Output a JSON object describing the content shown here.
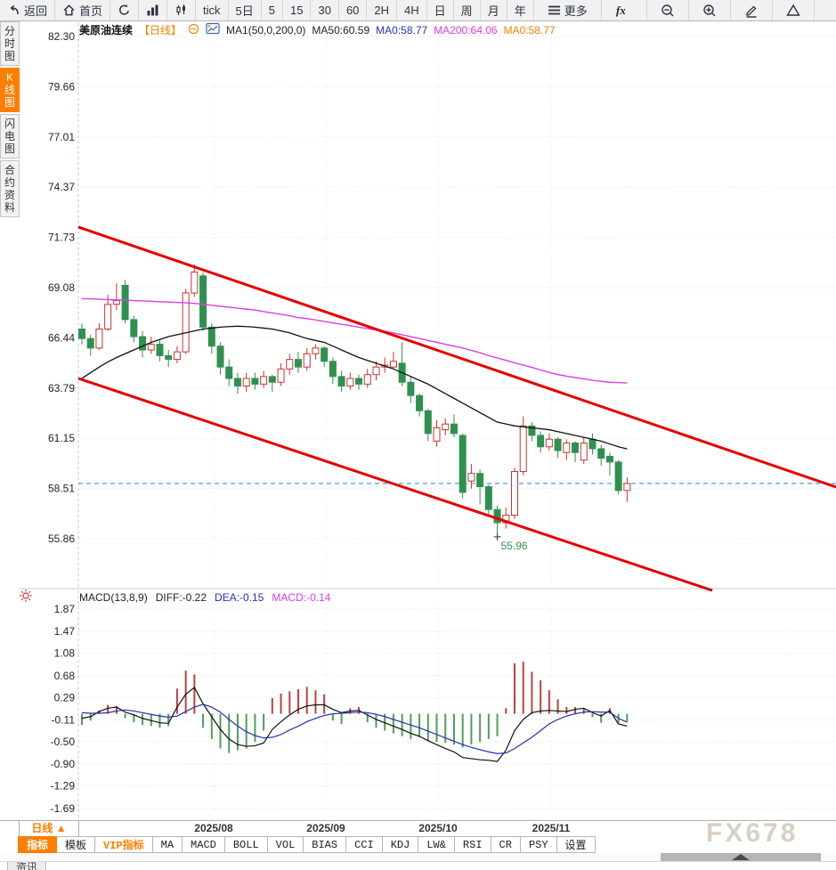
{
  "toolbar": {
    "items": [
      {
        "name": "toolbar-back-button",
        "icon": "back-icon",
        "label": "返回"
      },
      {
        "name": "toolbar-home-button",
        "icon": "home-icon",
        "label": "首页"
      },
      {
        "name": "toolbar-refresh-button",
        "icon": "refresh-icon",
        "label": ""
      },
      {
        "name": "toolbar-volume-chart-button",
        "icon": "volume-bars-icon",
        "label": ""
      },
      {
        "name": "toolbar-kline-chart-button",
        "icon": "kline-icon",
        "label": ""
      },
      {
        "name": "toolbar-interval-tick",
        "label": "tick"
      },
      {
        "name": "toolbar-interval-5d",
        "label": "5日"
      },
      {
        "name": "toolbar-interval-5m",
        "label": "5"
      },
      {
        "name": "toolbar-interval-15m",
        "label": "15"
      },
      {
        "name": "toolbar-interval-30m",
        "label": "30"
      },
      {
        "name": "toolbar-interval-60m",
        "label": "60"
      },
      {
        "name": "toolbar-interval-2h",
        "label": "2H"
      },
      {
        "name": "toolbar-interval-4h",
        "label": "4H"
      },
      {
        "name": "toolbar-interval-daily",
        "label": "日"
      },
      {
        "name": "toolbar-interval-weekly",
        "label": "周"
      },
      {
        "name": "toolbar-interval-monthly",
        "label": "月"
      },
      {
        "name": "toolbar-interval-yearly",
        "label": "年"
      },
      {
        "name": "toolbar-more-button",
        "icon": "menu-icon",
        "label": "更多",
        "wide": true
      },
      {
        "name": "toolbar-formula-button",
        "icon": "fx-icon",
        "label": "",
        "wide": true
      },
      {
        "name": "toolbar-zoom-out-button",
        "icon": "zoom-out-icon",
        "label": "",
        "wide": true
      },
      {
        "name": "toolbar-zoom-in-button",
        "icon": "zoom-in-icon",
        "label": "",
        "wide": true
      },
      {
        "name": "toolbar-draw-button",
        "icon": "pencil-icon",
        "label": "",
        "wide": true
      },
      {
        "name": "toolbar-shapes-button",
        "icon": "triangle-icon",
        "label": "",
        "wide": true
      }
    ]
  },
  "sidebar": {
    "tabs": [
      {
        "name": "sidebar-tab-time-chart",
        "label": "分时图",
        "active": false
      },
      {
        "name": "sidebar-tab-kline",
        "label": "K线图",
        "active": true
      },
      {
        "name": "sidebar-tab-lightning",
        "label": "闪电图",
        "active": false
      },
      {
        "name": "sidebar-tab-contract-info",
        "label": "合约资料",
        "active": false
      }
    ]
  },
  "legend": {
    "symbol": "美原油连续",
    "period_tag": "【日线】",
    "ma_settings": "MA1(50,0,200,0)",
    "ma50": "MA50:60.59",
    "ma0_blue": "MA0:58.77",
    "ma200": "MA200:64.06",
    "ma0_orange": "MA0:58.77"
  },
  "macd_legend": {
    "title": "MACD(13,8,9)",
    "diff": "DIFF:-0.22",
    "dea": "DEA:-0.15",
    "macd": "MACD:-0.14"
  },
  "bottom": {
    "period_label": "日线 ▲",
    "tabs": [
      {
        "name": "bottom-tab-indicator",
        "label": "指标",
        "sel": true
      },
      {
        "name": "bottom-tab-template",
        "label": "模板"
      },
      {
        "name": "bottom-tab-vip-indicator",
        "label": "VIP指标",
        "vip": true
      },
      {
        "name": "bottom-tab-ma",
        "label": "MA"
      },
      {
        "name": "bottom-tab-macd",
        "label": "MACD"
      },
      {
        "name": "bottom-tab-boll",
        "label": "BOLL"
      },
      {
        "name": "bottom-tab-vol",
        "label": "VOL"
      },
      {
        "name": "bottom-tab-bias",
        "label": "BIAS"
      },
      {
        "name": "bottom-tab-cci",
        "label": "CCI"
      },
      {
        "name": "bottom-tab-kdj",
        "label": "KDJ"
      },
      {
        "name": "bottom-tab-lw",
        "label": "LW&"
      },
      {
        "name": "bottom-tab-rsi",
        "label": "RSI"
      },
      {
        "name": "bottom-tab-cr",
        "label": "CR"
      },
      {
        "name": "bottom-tab-psy",
        "label": "PSY"
      },
      {
        "name": "bottom-tab-settings",
        "label": "设置"
      }
    ],
    "news_tab": "资讯"
  },
  "watermark": "FX678",
  "colors": {
    "accent_orange": "#ff7e00",
    "up_red": "#cc3232",
    "down_green": "#2f9150",
    "trend_red": "#e60000",
    "ma50_black": "#111111",
    "ma200_magenta": "#e03ce0",
    "dea_blue": "#2233aa",
    "dashed_blue": "#3e8fe8",
    "label_blue": "#2030c0",
    "low_green": "#2f9150"
  },
  "chart_data": [
    {
      "type": "candlestick",
      "title": "美原油连续 日线",
      "ylim": [
        54.5,
        83.0
      ],
      "y_ticks": [
        82.3,
        79.66,
        77.01,
        74.37,
        71.73,
        69.08,
        66.44,
        63.79,
        61.15,
        58.51,
        55.86
      ],
      "x_labels": [
        {
          "label": "2025/08",
          "x": 240
        },
        {
          "label": "2025/09",
          "x": 366
        },
        {
          "label": "2025/10",
          "x": 492
        },
        {
          "label": "2025/11",
          "x": 619
        }
      ],
      "grid": true,
      "last_close_line": 58.77,
      "low_annotation": {
        "index": 48,
        "price": 55.96,
        "label": "55.96"
      },
      "trend_channel": {
        "upper": [
          {
            "x": 88,
            "price": 72.27
          },
          {
            "x": 939,
            "price": 58.58
          }
        ],
        "lower": [
          {
            "x": 88,
            "price": 64.3
          },
          {
            "x": 800,
            "price": 53.14
          }
        ]
      },
      "candles": [
        [
          66.9,
          67.2,
          66.1,
          66.4
        ],
        [
          66.4,
          66.6,
          65.5,
          65.9
        ],
        [
          65.9,
          67.2,
          65.8,
          66.9
        ],
        [
          66.9,
          68.7,
          66.8,
          68.2
        ],
        [
          68.2,
          69.3,
          67.9,
          68.4
        ],
        [
          69.2,
          69.5,
          67.2,
          67.4
        ],
        [
          67.4,
          67.6,
          66.2,
          66.5
        ],
        [
          66.5,
          66.8,
          65.4,
          65.8
        ],
        [
          65.8,
          66.5,
          65.6,
          66.1
        ],
        [
          66.1,
          66.3,
          65.2,
          65.5
        ],
        [
          65.5,
          65.8,
          64.9,
          65.3
        ],
        [
          65.3,
          66.0,
          65.1,
          65.7
        ],
        [
          65.7,
          69.0,
          65.6,
          68.8
        ],
        [
          68.8,
          70.3,
          68.6,
          69.9
        ],
        [
          69.7,
          69.9,
          66.8,
          67.0
        ],
        [
          67.0,
          67.2,
          65.6,
          66.0
        ],
        [
          66.0,
          66.2,
          64.5,
          64.9
        ],
        [
          64.9,
          65.3,
          63.9,
          64.3
        ],
        [
          64.3,
          64.6,
          63.5,
          63.9
        ],
        [
          63.9,
          64.6,
          63.6,
          64.3
        ],
        [
          64.3,
          64.6,
          63.7,
          64.0
        ],
        [
          64.0,
          64.7,
          63.8,
          64.4
        ],
        [
          64.4,
          64.5,
          63.6,
          64.1
        ],
        [
          64.1,
          65.1,
          63.9,
          64.8
        ],
        [
          64.8,
          65.6,
          64.5,
          65.3
        ],
        [
          65.3,
          65.7,
          64.6,
          64.9
        ],
        [
          64.9,
          65.9,
          64.7,
          65.6
        ],
        [
          65.6,
          66.1,
          65.3,
          65.9
        ],
        [
          65.9,
          66.0,
          64.9,
          65.2
        ],
        [
          65.2,
          65.4,
          64.0,
          64.4
        ],
        [
          64.4,
          64.7,
          63.6,
          63.9
        ],
        [
          63.9,
          64.6,
          63.7,
          64.3
        ],
        [
          64.3,
          64.5,
          63.7,
          64.0
        ],
        [
          64.0,
          64.8,
          63.8,
          64.5
        ],
        [
          64.5,
          65.2,
          64.2,
          64.9
        ],
        [
          64.9,
          65.4,
          64.6,
          65.0
        ],
        [
          64.9,
          65.7,
          64.8,
          65.2
        ],
        [
          65.1,
          66.2,
          63.9,
          64.1
        ],
        [
          64.1,
          64.4,
          63.0,
          63.4
        ],
        [
          63.4,
          63.5,
          62.3,
          62.6
        ],
        [
          62.6,
          62.7,
          61.0,
          61.4
        ],
        [
          61.0,
          62.1,
          60.7,
          61.7
        ],
        [
          61.6,
          62.2,
          61.3,
          61.9
        ],
        [
          61.9,
          62.4,
          61.2,
          61.4
        ],
        [
          61.3,
          61.4,
          58.0,
          58.3
        ],
        [
          58.9,
          59.8,
          58.5,
          59.3
        ],
        [
          59.3,
          59.5,
          57.7,
          58.6
        ],
        [
          58.6,
          58.7,
          57.1,
          57.4
        ],
        [
          57.4,
          57.6,
          55.96,
          56.7
        ],
        [
          56.7,
          57.5,
          56.4,
          57.1
        ],
        [
          57.1,
          59.6,
          56.9,
          59.4
        ],
        [
          59.4,
          62.3,
          59.2,
          61.8
        ],
        [
          61.8,
          62.0,
          61.0,
          61.3
        ],
        [
          61.3,
          61.5,
          60.4,
          60.7
        ],
        [
          60.7,
          61.4,
          60.5,
          61.1
        ],
        [
          61.1,
          61.2,
          60.1,
          60.5
        ],
        [
          60.4,
          61.1,
          60.0,
          60.9
        ],
        [
          60.9,
          61.0,
          59.9,
          60.4
        ],
        [
          60.0,
          61.2,
          59.8,
          60.9
        ],
        [
          61.1,
          61.4,
          60.3,
          60.6
        ],
        [
          60.6,
          60.8,
          59.7,
          60.1
        ],
        [
          60.2,
          60.4,
          59.2,
          59.9
        ],
        [
          59.9,
          60.0,
          58.2,
          58.4
        ],
        [
          58.4,
          59.1,
          57.8,
          58.77
        ]
      ],
      "ma50": [
        64.3,
        64.6,
        64.9,
        65.17,
        65.4,
        65.6,
        65.8,
        66.0,
        66.2,
        66.35,
        66.5,
        66.6,
        66.7,
        66.8,
        66.9,
        66.95,
        67.0,
        67.03,
        67.05,
        67.03,
        67.0,
        66.95,
        66.9,
        66.8,
        66.7,
        66.55,
        66.4,
        66.3,
        66.2,
        66.0,
        65.8,
        65.6,
        65.4,
        65.25,
        65.1,
        64.95,
        64.8,
        64.6,
        64.4,
        64.2,
        64.0,
        63.75,
        63.5,
        63.25,
        63.0,
        62.75,
        62.5,
        62.25,
        62.0,
        61.9,
        61.8,
        61.75,
        61.7,
        61.65,
        61.6,
        61.5,
        61.4,
        61.3,
        61.2,
        61.1,
        61.0,
        60.85,
        60.7,
        60.59
      ],
      "ma200": [
        68.5,
        68.49,
        68.47,
        68.45,
        68.43,
        68.42,
        68.4,
        68.38,
        68.36,
        68.34,
        68.32,
        68.3,
        68.28,
        68.25,
        68.2,
        68.15,
        68.1,
        68.05,
        68.0,
        67.95,
        67.9,
        67.82,
        67.75,
        67.68,
        67.6,
        67.5,
        67.45,
        67.38,
        67.3,
        67.22,
        67.15,
        67.08,
        67.0,
        66.92,
        66.85,
        66.78,
        66.7,
        66.6,
        66.5,
        66.4,
        66.3,
        66.2,
        66.1,
        66.0,
        65.9,
        65.78,
        65.65,
        65.5,
        65.38,
        65.25,
        65.12,
        65.0,
        64.88,
        64.75,
        64.62,
        64.5,
        64.42,
        64.35,
        64.28,
        64.2,
        64.15,
        64.1,
        64.08,
        64.06
      ]
    },
    {
      "type": "macd",
      "params": "13,8,9",
      "y_ticks": [
        1.87,
        1.47,
        1.08,
        0.68,
        0.29,
        -0.11,
        -0.5,
        -0.9,
        -1.29,
        -1.69
      ],
      "hist": [
        -0.2,
        -0.12,
        0.06,
        0.16,
        0.14,
        -0.08,
        -0.15,
        -0.2,
        -0.22,
        -0.25,
        -0.22,
        0.45,
        0.77,
        0.7,
        -0.25,
        -0.45,
        -0.62,
        -0.7,
        -0.65,
        -0.62,
        -0.5,
        -0.3,
        0.28,
        0.36,
        0.4,
        0.44,
        0.48,
        0.42,
        0.35,
        -0.12,
        -0.18,
        0.1,
        0.12,
        -0.15,
        -0.25,
        -0.3,
        -0.35,
        -0.4,
        -0.45,
        -0.42,
        -0.48,
        -0.5,
        -0.52,
        -0.55,
        -0.6,
        -0.55,
        -0.5,
        -0.45,
        -0.4,
        0.1,
        0.9,
        0.93,
        0.75,
        0.6,
        0.42,
        0.26,
        0.12,
        0.12,
        0.1,
        -0.06,
        -0.16,
        0.1,
        -0.16,
        -0.14
      ],
      "diff": [
        -0.08,
        -0.05,
        0.04,
        0.1,
        0.12,
        0.03,
        -0.02,
        -0.08,
        -0.12,
        -0.16,
        -0.17,
        0.12,
        0.35,
        0.47,
        0.18,
        -0.05,
        -0.28,
        -0.45,
        -0.55,
        -0.58,
        -0.57,
        -0.52,
        -0.28,
        -0.14,
        -0.02,
        0.08,
        0.14,
        0.16,
        0.16,
        0.08,
        0.02,
        0.05,
        0.06,
        -0.02,
        -0.1,
        -0.16,
        -0.22,
        -0.28,
        -0.35,
        -0.4,
        -0.48,
        -0.55,
        -0.62,
        -0.68,
        -0.78,
        -0.8,
        -0.82,
        -0.83,
        -0.85,
        -0.65,
        -0.3,
        -0.1,
        0.02,
        0.05,
        0.06,
        0.05,
        0.04,
        0.08,
        0.1,
        0.02,
        -0.04,
        0.06,
        -0.18,
        -0.22
      ],
      "dea": [
        0.02,
        0.01,
        0.01,
        0.02,
        0.05,
        0.07,
        0.05,
        0.02,
        -0.01,
        -0.04,
        -0.06,
        -0.04,
        0.04,
        0.12,
        0.17,
        0.12,
        0.03,
        -0.1,
        -0.22,
        -0.32,
        -0.39,
        -0.43,
        -0.42,
        -0.37,
        -0.29,
        -0.22,
        -0.14,
        -0.08,
        -0.03,
        0.0,
        0.01,
        0.02,
        0.03,
        0.02,
        -0.01,
        -0.05,
        -0.1,
        -0.15,
        -0.2,
        -0.25,
        -0.31,
        -0.37,
        -0.43,
        -0.49,
        -0.55,
        -0.6,
        -0.64,
        -0.68,
        -0.71,
        -0.7,
        -0.62,
        -0.52,
        -0.42,
        -0.3,
        -0.18,
        -0.1,
        -0.04,
        0.0,
        0.03,
        0.04,
        0.03,
        0.03,
        -0.08,
        -0.15
      ]
    }
  ]
}
